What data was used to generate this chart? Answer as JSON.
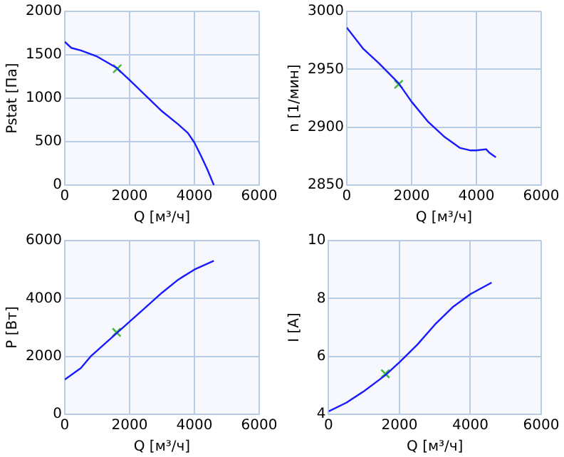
{
  "chart_data": [
    {
      "type": "line",
      "xlabel": "Q [м³/ч]",
      "ylabel": "Pstat [Па]",
      "xlim": [
        0,
        6000
      ],
      "xticks": [
        0,
        2000,
        4000,
        6000
      ],
      "ylim": [
        0,
        2000
      ],
      "yticks": [
        0,
        500,
        1000,
        1500,
        2000
      ],
      "grid": true,
      "legend": false,
      "series": [
        {
          "color": "#1a1aff",
          "marker": "none",
          "x": [
            0,
            200,
            500,
            1000,
            1600,
            2000,
            2500,
            3000,
            3500,
            3800,
            4000,
            4200,
            4400,
            4600
          ],
          "values": [
            1650,
            1580,
            1550,
            1480,
            1350,
            1210,
            1030,
            850,
            700,
            600,
            490,
            340,
            180,
            0
          ]
        },
        {
          "type": "scatter",
          "color": "#44bb44",
          "marker": "cross",
          "x": [
            1620
          ],
          "values": [
            1340
          ]
        }
      ]
    },
    {
      "type": "line",
      "xlabel": "Q [м³/ч]",
      "ylabel": "n [1/мин]",
      "xlim": [
        0,
        6000
      ],
      "xticks": [
        0,
        2000,
        4000,
        6000
      ],
      "ylim": [
        2850,
        3000
      ],
      "yticks": [
        2850,
        2900,
        2950,
        3000
      ],
      "grid": true,
      "legend": false,
      "series": [
        {
          "color": "#1a1aff",
          "marker": "none",
          "x": [
            0,
            500,
            1000,
            1600,
            2000,
            2500,
            3000,
            3500,
            3800,
            4000,
            4300,
            4400,
            4600
          ],
          "values": [
            2986,
            2968,
            2955,
            2938,
            2922,
            2905,
            2892,
            2882,
            2880,
            2880,
            2881,
            2878,
            2874
          ]
        },
        {
          "type": "scatter",
          "color": "#44bb44",
          "marker": "cross",
          "x": [
            1600
          ],
          "values": [
            2937
          ]
        }
      ]
    },
    {
      "type": "line",
      "xlabel": "Q [м³/ч]",
      "ylabel": "P [Вт]",
      "xlim": [
        0,
        6000
      ],
      "xticks": [
        0,
        2000,
        4000,
        6000
      ],
      "ylim": [
        0,
        6000
      ],
      "yticks": [
        0,
        2000,
        4000,
        6000
      ],
      "grid": true,
      "legend": false,
      "series": [
        {
          "color": "#1a1aff",
          "marker": "none",
          "x": [
            0,
            500,
            800,
            1200,
            1600,
            2000,
            2500,
            3000,
            3500,
            4000,
            4600
          ],
          "values": [
            1200,
            1600,
            2000,
            2400,
            2800,
            3200,
            3700,
            4200,
            4650,
            5000,
            5300
          ]
        },
        {
          "type": "scatter",
          "color": "#44bb44",
          "marker": "cross",
          "x": [
            1600
          ],
          "values": [
            2830
          ]
        }
      ]
    },
    {
      "type": "line",
      "xlabel": "Q [м³/ч]",
      "ylabel": "I [A]",
      "xlim": [
        0,
        6000
      ],
      "xticks": [
        0,
        2000,
        4000,
        6000
      ],
      "ylim": [
        4,
        10
      ],
      "yticks": [
        4,
        6,
        8,
        10
      ],
      "grid": true,
      "legend": false,
      "series": [
        {
          "color": "#1a1aff",
          "marker": "none",
          "x": [
            0,
            500,
            1000,
            1600,
            2000,
            2500,
            3000,
            3500,
            4000,
            4600
          ],
          "values": [
            4.1,
            4.4,
            4.8,
            5.35,
            5.8,
            6.4,
            7.1,
            7.7,
            8.15,
            8.55
          ]
        },
        {
          "type": "scatter",
          "color": "#44bb44",
          "marker": "cross",
          "x": [
            1600
          ],
          "values": [
            5.4
          ]
        }
      ]
    }
  ]
}
